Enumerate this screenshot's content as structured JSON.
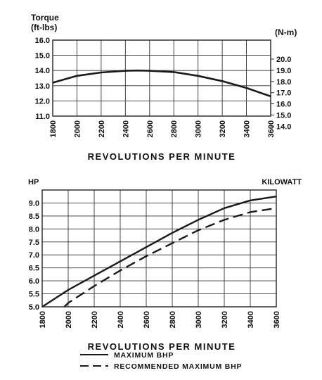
{
  "chart_data": [
    {
      "type": "line",
      "ylabel": "Torque",
      "ylabel_units": "(ft-lbs)",
      "right_ylabel": "(N-m)",
      "xlabel": "REVOLUTIONS PER MINUTE",
      "xlim": [
        1800,
        3600
      ],
      "ylim": [
        11.0,
        16.0
      ],
      "right_ylim": [
        14.9,
        21.7
      ],
      "x_ticks": [
        "1800",
        "2000",
        "2200",
        "2400",
        "2600",
        "2800",
        "3000",
        "3200",
        "3400",
        "3600"
      ],
      "y_ticks": [
        "16.0",
        "15.0",
        "14.0",
        "13.0",
        "12.0",
        "11.0"
      ],
      "right_y_ticks": [
        "20.0",
        "19.0",
        "18.0",
        "17.0",
        "16.0",
        "15.0",
        "14.0"
      ],
      "grid": true,
      "series": [
        {
          "x": [
            1800,
            2000,
            2200,
            2400,
            2500,
            2600,
            2800,
            3000,
            3200,
            3400,
            3600
          ],
          "values": [
            13.2,
            13.65,
            13.87,
            13.98,
            14.0,
            13.98,
            13.9,
            13.65,
            13.3,
            12.85,
            12.3
          ]
        }
      ]
    },
    {
      "type": "line",
      "ylabel": "HP",
      "right_ylabel": "KILOWATT",
      "xlabel": "REVOLUTIONS PER MINUTE",
      "xlim": [
        1800,
        3600
      ],
      "ylim": [
        5.0,
        9.5
      ],
      "x_ticks": [
        "1800",
        "2000",
        "2200",
        "2400",
        "2600",
        "2800",
        "3000",
        "3200",
        "3400",
        "3600"
      ],
      "y_ticks": [
        "9.0",
        "8.5",
        "8.0",
        "7.5",
        "7.0",
        "6.5",
        "6.0",
        "5.5",
        "5.0"
      ],
      "grid": true,
      "legend_position": "bottom-center",
      "series": [
        {
          "name": "MAXIMUM BHP",
          "style": "solid",
          "x": [
            1800,
            2000,
            2200,
            2400,
            2600,
            2800,
            3000,
            3200,
            3400,
            3600
          ],
          "values": [
            5.0,
            5.65,
            6.2,
            6.75,
            7.3,
            7.85,
            8.35,
            8.8,
            9.1,
            9.25
          ]
        },
        {
          "name": "RECOMMENDED MAXIMUM BHP",
          "style": "dashed",
          "x": [
            1970,
            2000,
            2200,
            2400,
            2600,
            2800,
            3000,
            3200,
            3400,
            3600
          ],
          "values": [
            5.0,
            5.15,
            5.8,
            6.4,
            6.95,
            7.45,
            7.95,
            8.35,
            8.65,
            8.8
          ]
        }
      ]
    }
  ]
}
